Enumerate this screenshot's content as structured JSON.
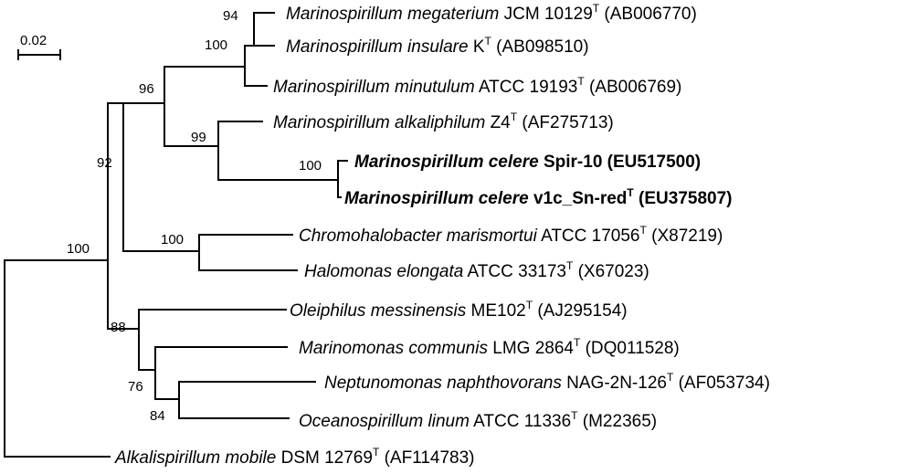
{
  "scale_label": "0.02",
  "taxa": {
    "megaterium": {
      "species": "Marinospirillum megaterium",
      "strain": "JCM 10129",
      "type_strain": true,
      "accession": "(AB006770)"
    },
    "insulare": {
      "species": "Marinospirillum insulare",
      "strain": "K",
      "type_strain": true,
      "accession": "(AB098510)"
    },
    "minutulum": {
      "species": "Marinospirillum minutulum",
      "strain": "ATCC 19193",
      "type_strain": true,
      "accession": "(AB006769)"
    },
    "alkaliphilum": {
      "species": "Marinospirillum alkaliphilum",
      "strain": "Z4",
      "type_strain": true,
      "accession": "(AF275713)"
    },
    "celere_spir10": {
      "species": "Marinospirillum celere",
      "strain": "Spir-10",
      "type_strain": false,
      "accession": "(EU517500)",
      "bold": true
    },
    "celere_v1c": {
      "species": "Marinospirillum celere",
      "strain": "v1c_Sn-red",
      "type_strain": true,
      "accession": "(EU375807)",
      "bold": true
    },
    "chromohalobacter": {
      "species": "Chromohalobacter marismortui",
      "strain": "ATCC 17056",
      "type_strain": true,
      "accession": "(X87219)"
    },
    "halomonas": {
      "species": "Halomonas elongata",
      "strain": "ATCC 33173",
      "type_strain": true,
      "accession": "(X67023)"
    },
    "oleiphilus": {
      "species": "Oleiphilus messinensis",
      "strain": "ME102",
      "type_strain": true,
      "accession": "(AJ295154)"
    },
    "marinomonas": {
      "species": "Marinomonas communis",
      "strain": "LMG 2864",
      "type_strain": true,
      "accession": "(DQ011528)"
    },
    "neptunomonas": {
      "species": "Neptunomonas naphthovorans",
      "strain": "NAG-2N-126",
      "type_strain": true,
      "accession": "(AF053734)"
    },
    "oceanospirillum": {
      "species": "Oceanospirillum linum",
      "strain": "ATCC 11336",
      "type_strain": true,
      "accession": "(M22365)"
    },
    "alkalispirillum": {
      "species": "Alkalispirillum mobile",
      "strain": "DSM 12769",
      "type_strain": true,
      "accession": "(AF114783)"
    }
  },
  "type_superscript": "T",
  "bootstrap": {
    "mega_ins": "94",
    "mega_ins_min": "100",
    "marinospirillum": "96",
    "alk_celere": "99",
    "celere": "100",
    "ingroup": "92",
    "chromo_halo": "100",
    "root": "100",
    "olei_group": "88",
    "marinomonas_group": "76",
    "nept_ocean": "84"
  }
}
